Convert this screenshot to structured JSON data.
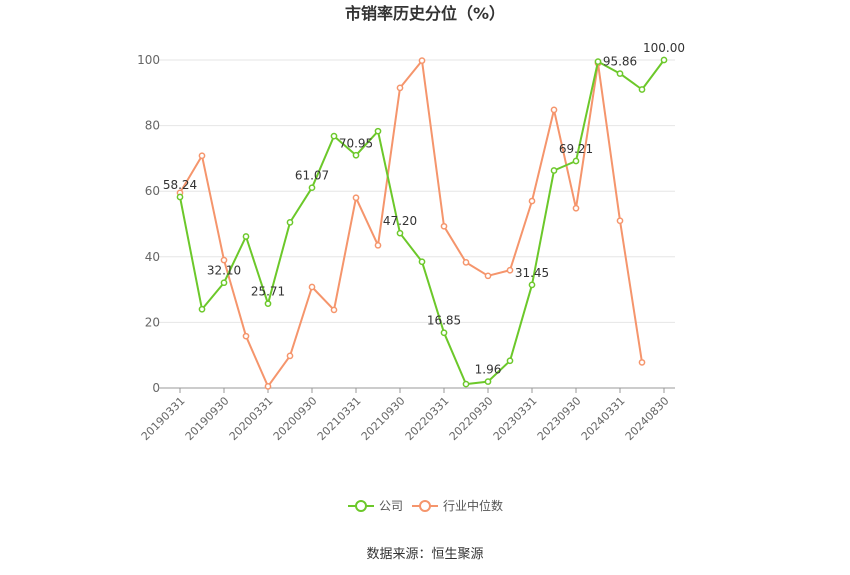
{
  "chart_data": {
    "type": "line",
    "title": "市销率历史分位（%）",
    "source": "数据来源：恒生聚源",
    "ylim": [
      0,
      100
    ],
    "yticks": [
      "0",
      "20",
      "40",
      "60",
      "80",
      "100"
    ],
    "x": [
      "20190331",
      "20190630",
      "20190930",
      "20191231",
      "20200331",
      "20200630",
      "20200930",
      "20201231",
      "20210331",
      "20210630",
      "20210930",
      "20211231",
      "20220331",
      "20220630",
      "20220930",
      "20221231",
      "20230331",
      "20230630",
      "20230930",
      "20231231",
      "20240331",
      "20240630",
      "20240830"
    ],
    "xtick_labels": [
      "20190331",
      "20190930",
      "20200331",
      "20200930",
      "20210331",
      "20210930",
      "20220331",
      "20220930",
      "20230331",
      "20230930",
      "20240331",
      "20240830"
    ],
    "series": [
      {
        "name": "公司",
        "color": "#6cc82a",
        "values": [
          58.24,
          24.0,
          32.1,
          46.2,
          25.71,
          50.5,
          61.07,
          76.8,
          70.95,
          78.3,
          47.2,
          38.5,
          16.85,
          1.2,
          1.96,
          8.3,
          31.45,
          66.3,
          69.21,
          99.5,
          95.86,
          91.0,
          100.0
        ],
        "labels": [
          "58.24",
          null,
          "32.10",
          null,
          "25.71",
          null,
          "61.07",
          null,
          "70.95",
          null,
          "47.20",
          null,
          "16.85",
          null,
          "1.96",
          null,
          "31.45",
          null,
          "69.21",
          null,
          "95.86",
          null,
          "100.00"
        ]
      },
      {
        "name": "行业中位数",
        "color": "#f5956c",
        "values": [
          59.5,
          70.8,
          39.0,
          15.8,
          0.5,
          9.8,
          30.8,
          23.8,
          58.0,
          43.5,
          91.5,
          99.8,
          49.3,
          38.3,
          34.2,
          35.9,
          57.0,
          84.8,
          54.8,
          99.0,
          51.0,
          7.8,
          null
        ]
      }
    ]
  }
}
